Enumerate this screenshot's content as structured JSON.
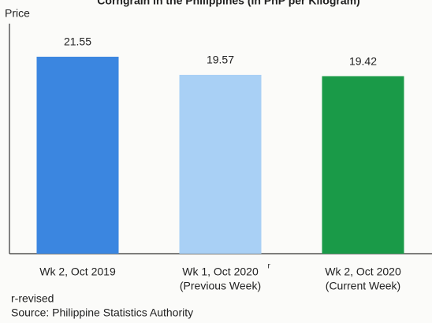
{
  "chart_data": {
    "type": "bar",
    "title": "Corngrain in the Philippines (in PhP per Kilogram)",
    "y_label": "Price",
    "categories": [
      "Wk 2, Oct 2019",
      "Wk 1, Oct 2020",
      "Wk 2, Oct 2020"
    ],
    "category_sublabels": [
      null,
      "(Previous Week)",
      "(Current Week)"
    ],
    "superscript_marks": [
      null,
      "r",
      null
    ],
    "values": [
      21.55,
      19.57,
      19.42
    ],
    "colors": [
      "#3b86e0",
      "#a9d0f5",
      "#1a9a48"
    ],
    "ylim": [
      0,
      25
    ],
    "footnotes": [
      "r-revised",
      "Source: Philippine Statistics Authority"
    ]
  }
}
